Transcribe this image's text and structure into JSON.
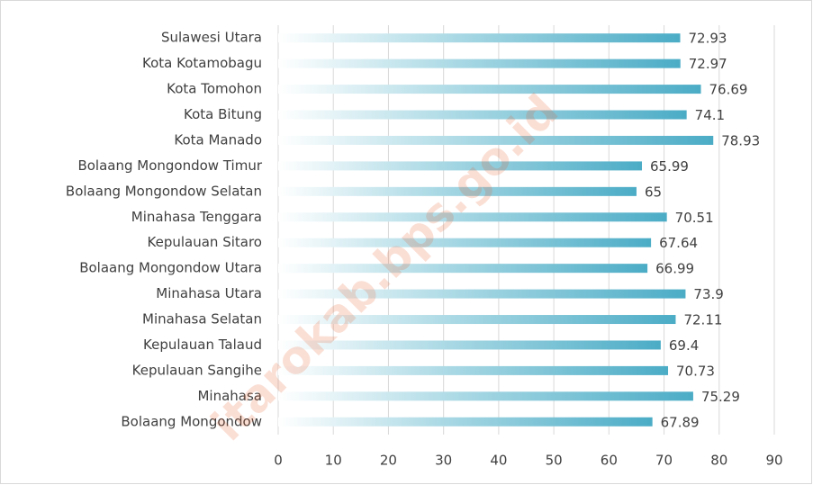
{
  "chart_data": {
    "type": "barh",
    "categories": [
      "Sulawesi Utara",
      "Kota Kotamobagu",
      "Kota Tomohon",
      "Kota Bitung",
      "Kota Manado",
      "Bolaang Mongondow Timur",
      "Bolaang Mongondow Selatan",
      "Minahasa Tenggara",
      "Kepulauan Sitaro",
      "Bolaang Mongondow Utara",
      "Minahasa Utara",
      "Minahasa Selatan",
      "Kepulauan Talaud",
      "Kepulauan Sangihe",
      "Minahasa",
      "Bolaang Mongondow"
    ],
    "values": [
      72.93,
      72.97,
      76.69,
      74.1,
      78.93,
      65.99,
      65,
      70.51,
      67.64,
      66.99,
      73.9,
      72.11,
      69.4,
      70.73,
      75.29,
      67.89
    ],
    "color": "#4bacc6",
    "xlim": [
      0,
      90
    ],
    "xticks": [
      0,
      10,
      20,
      30,
      40,
      50,
      60,
      70,
      80,
      90
    ],
    "grid": true,
    "watermark": "itarokab.bps.go.id"
  }
}
